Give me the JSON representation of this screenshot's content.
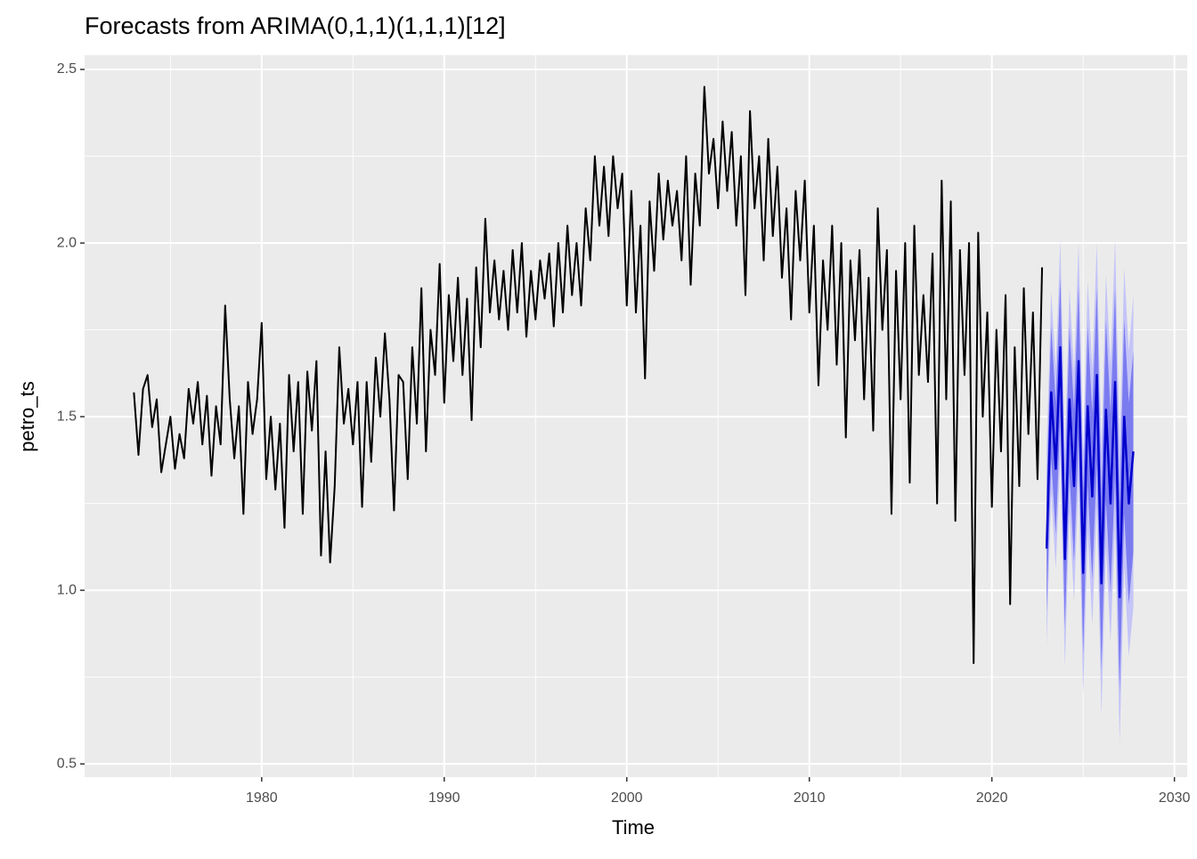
{
  "chart_data": {
    "type": "forecast",
    "title": "Forecasts from ARIMA(0,1,1)(1,1,1)[12]",
    "x_label": "Time",
    "y_label": "petro_ts",
    "xlim": [
      1970.3,
      2030.7
    ],
    "ylim": [
      0.462,
      2.541
    ],
    "xticks": [
      1980,
      1990,
      2000,
      2010,
      2020,
      2030
    ],
    "xminor_ticks": [
      1975,
      1985,
      1995,
      2005,
      2015,
      2025
    ],
    "yticks": [
      0.5,
      {
        "value": 1.0,
        "label": "1.0"
      },
      1.5,
      {
        "value": 2.0,
        "label": "2.0"
      },
      2.5
    ],
    "yminor_ticks": [
      0.75,
      1.25,
      1.75,
      2.25
    ],
    "grid": true,
    "color": "#000000",
    "x": [
      1973,
      1973.25,
      1973.5,
      1973.75,
      1974,
      1974.25,
      1974.5,
      1974.75,
      1975,
      1975.25,
      1975.5,
      1975.75,
      1976,
      1976.25,
      1976.5,
      1976.75,
      1977,
      1977.25,
      1977.5,
      1977.75,
      1978,
      1978.25,
      1978.5,
      1978.75,
      1979,
      1979.25,
      1979.5,
      1979.75,
      1980,
      1980.25,
      1980.5,
      1980.75,
      1981,
      1981.25,
      1981.5,
      1981.75,
      1982,
      1982.25,
      1982.5,
      1982.75,
      1983,
      1983.25,
      1983.5,
      1983.75,
      1984,
      1984.25,
      1984.5,
      1984.75,
      1985,
      1985.25,
      1985.5,
      1985.75,
      1986,
      1986.25,
      1986.5,
      1986.75,
      1987,
      1987.25,
      1987.5,
      1987.75,
      1988,
      1988.25,
      1988.5,
      1988.75,
      1989,
      1989.25,
      1989.5,
      1989.75,
      1990,
      1990.25,
      1990.5,
      1990.75,
      1991,
      1991.25,
      1991.5,
      1991.75,
      1992,
      1992.25,
      1992.5,
      1992.75,
      1993,
      1993.25,
      1993.5,
      1993.75,
      1994,
      1994.25,
      1994.5,
      1994.75,
      1995,
      1995.25,
      1995.5,
      1995.75,
      1996,
      1996.25,
      1996.5,
      1996.75,
      1997,
      1997.25,
      1997.5,
      1997.75,
      1998,
      1998.25,
      1998.5,
      1998.75,
      1999,
      1999.25,
      1999.5,
      1999.75,
      2000,
      2000.25,
      2000.5,
      2000.75,
      2001,
      2001.25,
      2001.5,
      2001.75,
      2002,
      2002.25,
      2002.5,
      2002.75,
      2003,
      2003.25,
      2003.5,
      2003.75,
      2004,
      2004.25,
      2004.5,
      2004.75,
      2005,
      2005.25,
      2005.5,
      2005.75,
      2006,
      2006.25,
      2006.5,
      2006.75,
      2007,
      2007.25,
      2007.5,
      2007.75,
      2008,
      2008.25,
      2008.5,
      2008.75,
      2009,
      2009.25,
      2009.5,
      2009.75,
      2010,
      2010.25,
      2010.5,
      2010.75,
      2011,
      2011.25,
      2011.5,
      2011.75,
      2012,
      2012.25,
      2012.5,
      2012.75,
      2013,
      2013.25,
      2013.5,
      2013.75,
      2014,
      2014.25,
      2014.5,
      2014.75,
      2015,
      2015.25,
      2015.5,
      2015.75,
      2016,
      2016.25,
      2016.5,
      2016.75,
      2017,
      2017.25,
      2017.5,
      2017.75,
      2018,
      2018.25,
      2018.5,
      2018.75,
      2019,
      2019.25,
      2019.5,
      2019.75,
      2020,
      2020.25,
      2020.5,
      2020.75,
      2021,
      2021.25,
      2021.5,
      2021.75,
      2022,
      2022.25,
      2022.5,
      2022.75
    ],
    "values": [
      1.57,
      1.39,
      1.58,
      1.62,
      1.47,
      1.55,
      1.34,
      1.42,
      1.5,
      1.35,
      1.45,
      1.38,
      1.58,
      1.48,
      1.6,
      1.42,
      1.56,
      1.33,
      1.53,
      1.42,
      1.82,
      1.55,
      1.38,
      1.53,
      1.22,
      1.6,
      1.45,
      1.55,
      1.77,
      1.32,
      1.5,
      1.29,
      1.48,
      1.18,
      1.62,
      1.4,
      1.6,
      1.22,
      1.63,
      1.46,
      1.66,
      1.1,
      1.4,
      1.08,
      1.3,
      1.7,
      1.48,
      1.58,
      1.42,
      1.6,
      1.24,
      1.6,
      1.37,
      1.67,
      1.5,
      1.74,
      1.55,
      1.23,
      1.62,
      1.6,
      1.32,
      1.7,
      1.48,
      1.87,
      1.4,
      1.75,
      1.62,
      1.94,
      1.54,
      1.85,
      1.66,
      1.9,
      1.62,
      1.84,
      1.49,
      1.93,
      1.7,
      2.07,
      1.8,
      1.95,
      1.78,
      1.92,
      1.75,
      1.98,
      1.8,
      2.0,
      1.73,
      1.92,
      1.78,
      1.95,
      1.84,
      1.97,
      1.76,
      2.0,
      1.8,
      2.05,
      1.85,
      2.0,
      1.82,
      2.1,
      1.95,
      2.25,
      2.05,
      2.22,
      2.02,
      2.25,
      2.1,
      2.2,
      1.82,
      2.15,
      1.8,
      2.05,
      1.61,
      2.12,
      1.92,
      2.2,
      2.01,
      2.18,
      2.05,
      2.15,
      1.95,
      2.25,
      1.88,
      2.2,
      2.05,
      2.45,
      2.2,
      2.3,
      2.1,
      2.35,
      2.15,
      2.32,
      2.05,
      2.25,
      1.85,
      2.38,
      2.1,
      2.25,
      1.95,
      2.3,
      2.02,
      2.22,
      1.9,
      2.1,
      1.78,
      2.15,
      1.95,
      2.18,
      1.8,
      2.05,
      1.59,
      1.95,
      1.75,
      2.05,
      1.65,
      2.0,
      1.44,
      1.95,
      1.72,
      1.98,
      1.55,
      1.9,
      1.46,
      2.1,
      1.75,
      1.98,
      1.22,
      1.92,
      1.55,
      2.0,
      1.31,
      2.05,
      1.62,
      1.85,
      1.6,
      1.97,
      1.25,
      2.18,
      1.55,
      2.12,
      1.2,
      1.98,
      1.62,
      2.0,
      0.79,
      2.03,
      1.5,
      1.8,
      1.24,
      1.75,
      1.4,
      1.85,
      0.96,
      1.7,
      1.3,
      1.87,
      1.45,
      1.8,
      1.32,
      1.93
    ],
    "forecast": {
      "color": "#0000cc",
      "color80": "#7b7bf0",
      "color95": "#c4c4f8",
      "x": [
        2023,
        2023.25,
        2023.5,
        2023.75,
        2024,
        2024.25,
        2024.5,
        2024.75,
        2025,
        2025.25,
        2025.5,
        2025.75,
        2026,
        2026.25,
        2026.5,
        2026.75,
        2027,
        2027.25,
        2027.5,
        2027.75
      ],
      "values": [
        1.12,
        1.57,
        1.35,
        1.7,
        1.09,
        1.55,
        1.3,
        1.66,
        1.05,
        1.53,
        1.27,
        1.62,
        1.02,
        1.52,
        1.25,
        1.6,
        0.98,
        1.5,
        1.25,
        1.4
      ],
      "lo80": [
        0.94,
        1.38,
        1.16,
        1.5,
        0.89,
        1.34,
        1.08,
        1.44,
        0.82,
        1.3,
        1.03,
        1.37,
        0.77,
        1.26,
        0.99,
        1.33,
        0.71,
        1.22,
        0.96,
        1.11
      ],
      "hi80": [
        1.3,
        1.76,
        1.54,
        1.9,
        1.29,
        1.76,
        1.52,
        1.88,
        1.28,
        1.76,
        1.51,
        1.87,
        1.27,
        1.78,
        1.51,
        1.87,
        1.25,
        1.78,
        1.54,
        1.69
      ],
      "lo95": [
        0.84,
        1.28,
        1.06,
        1.39,
        0.78,
        1.23,
        0.97,
        1.32,
        0.7,
        1.17,
        0.9,
        1.24,
        0.64,
        1.13,
        0.85,
        1.19,
        0.56,
        1.07,
        0.81,
        0.95
      ],
      "hi95": [
        1.4,
        1.86,
        1.64,
        2.01,
        1.4,
        1.87,
        1.63,
        2.0,
        1.4,
        1.89,
        1.64,
        2.0,
        1.4,
        1.91,
        1.65,
        2.01,
        1.4,
        1.93,
        1.69,
        1.85
      ]
    }
  }
}
